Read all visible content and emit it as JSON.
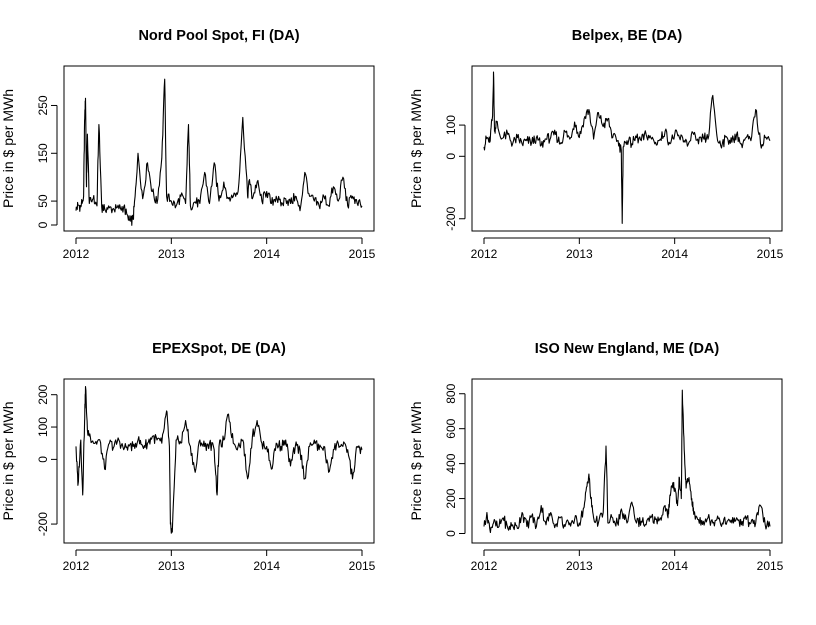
{
  "figure": {
    "background": "#ffffff",
    "line_color": "#000000"
  },
  "chart_data": [
    {
      "type": "line",
      "title": "Nord Pool Spot, FI (DA)",
      "xlabel": "",
      "ylabel": "Price in $ per MWh",
      "xlim": [
        2012,
        2015
      ],
      "ylim": [
        0,
        320
      ],
      "x_ticks": [
        2012,
        2013,
        2014,
        2015
      ],
      "y_ticks": [
        0,
        50,
        150,
        250
      ],
      "series": [
        {
          "x": [
            2012.0,
            2012.02,
            2012.05,
            2012.08,
            2012.09,
            2012.1,
            2012.11,
            2012.12,
            2012.14,
            2012.18,
            2012.22,
            2012.24,
            2012.27,
            2012.3,
            2012.35,
            2012.4,
            2012.45,
            2012.5,
            2012.55,
            2012.57,
            2012.6,
            2012.62,
            2012.65,
            2012.7,
            2012.75,
            2012.8,
            2012.85,
            2012.9,
            2012.93,
            2012.95,
            2013.0,
            2013.05,
            2013.1,
            2013.15,
            2013.18,
            2013.2,
            2013.25,
            2013.3,
            2013.35,
            2013.4,
            2013.45,
            2013.5,
            2013.55,
            2013.6,
            2013.65,
            2013.7,
            2013.75,
            2013.8,
            2013.82,
            2013.85,
            2013.9,
            2013.95,
            2014.0,
            2014.05,
            2014.1,
            2014.15,
            2014.2,
            2014.25,
            2014.3,
            2014.35,
            2014.4,
            2014.45,
            2014.5,
            2014.55,
            2014.6,
            2014.65,
            2014.7,
            2014.75,
            2014.8,
            2014.85,
            2014.9,
            2014.95,
            2015.0
          ],
          "y": [
            30,
            42,
            38,
            60,
            220,
            265,
            80,
            190,
            45,
            55,
            40,
            210,
            38,
            35,
            36,
            32,
            34,
            38,
            10,
            8,
            12,
            60,
            150,
            55,
            130,
            70,
            45,
            140,
            305,
            60,
            50,
            40,
            60,
            45,
            210,
            40,
            48,
            45,
            110,
            45,
            130,
            50,
            90,
            55,
            60,
            70,
            225,
            60,
            95,
            55,
            90,
            50,
            70,
            45,
            60,
            40,
            55,
            45,
            60,
            30,
            110,
            60,
            50,
            40,
            60,
            40,
            80,
            50,
            100,
            40,
            60,
            45,
            40
          ]
        }
      ]
    },
    {
      "type": "line",
      "title": "Belpex, BE (DA)",
      "xlabel": "",
      "ylabel": "Price in $ per MWh",
      "xlim": [
        2012,
        2015
      ],
      "ylim": [
        -220,
        270
      ],
      "x_ticks": [
        2012,
        2013,
        2014,
        2015
      ],
      "y_ticks": [
        -200,
        0,
        100
      ],
      "series": [
        {
          "x": [
            2012.0,
            2012.03,
            2012.06,
            2012.09,
            2012.1,
            2012.11,
            2012.13,
            2012.18,
            2012.25,
            2012.3,
            2012.35,
            2012.4,
            2012.45,
            2012.5,
            2012.55,
            2012.6,
            2012.65,
            2012.7,
            2012.75,
            2012.8,
            2012.85,
            2012.9,
            2012.95,
            2013.0,
            2013.05,
            2013.1,
            2013.15,
            2013.2,
            2013.25,
            2013.3,
            2013.35,
            2013.4,
            2013.44,
            2013.45,
            2013.46,
            2013.5,
            2013.55,
            2013.6,
            2013.65,
            2013.7,
            2013.75,
            2013.8,
            2013.85,
            2013.9,
            2013.95,
            2014.0,
            2014.05,
            2014.1,
            2014.15,
            2014.2,
            2014.25,
            2014.3,
            2014.35,
            2014.4,
            2014.45,
            2014.5,
            2014.55,
            2014.6,
            2014.65,
            2014.7,
            2014.75,
            2014.8,
            2014.85,
            2014.9,
            2014.95,
            2015.0
          ],
          "y": [
            30,
            60,
            45,
            130,
            270,
            80,
            110,
            55,
            70,
            40,
            60,
            40,
            50,
            45,
            60,
            35,
            55,
            60,
            70,
            40,
            80,
            55,
            110,
            60,
            120,
            150,
            55,
            140,
            95,
            120,
            60,
            50,
            20,
            -215,
            30,
            50,
            40,
            60,
            50,
            70,
            60,
            45,
            55,
            80,
            40,
            70,
            60,
            50,
            45,
            70,
            40,
            60,
            55,
            195,
            50,
            40,
            60,
            45,
            70,
            40,
            60,
            50,
            150,
            40,
            60,
            50
          ]
        }
      ]
    },
    {
      "type": "line",
      "title": "EPEXSpot, DE (DA)",
      "xlabel": "",
      "ylabel": "Price in $ per MWh",
      "xlim": [
        2012,
        2015
      ],
      "ylim": [
        -240,
        230
      ],
      "x_ticks": [
        2012,
        2013,
        2014,
        2015
      ],
      "y_ticks": [
        -200,
        0,
        100,
        200
      ],
      "series": [
        {
          "x": [
            2012.0,
            2012.02,
            2012.05,
            2012.07,
            2012.09,
            2012.1,
            2012.12,
            2012.15,
            2012.2,
            2012.25,
            2012.3,
            2012.35,
            2012.4,
            2012.45,
            2012.5,
            2012.55,
            2012.6,
            2012.65,
            2012.7,
            2012.75,
            2012.8,
            2012.85,
            2012.9,
            2012.95,
            2012.98,
            2012.99,
            2013.01,
            2013.05,
            2013.1,
            2013.15,
            2013.2,
            2013.25,
            2013.3,
            2013.35,
            2013.4,
            2013.45,
            2013.48,
            2013.5,
            2013.55,
            2013.6,
            2013.65,
            2013.7,
            2013.75,
            2013.8,
            2013.85,
            2013.9,
            2013.95,
            2014.0,
            2014.05,
            2014.1,
            2014.15,
            2014.2,
            2014.25,
            2014.3,
            2014.35,
            2014.4,
            2014.45,
            2014.5,
            2014.55,
            2014.6,
            2014.65,
            2014.7,
            2014.75,
            2014.8,
            2014.85,
            2014.9,
            2014.95,
            2015.0
          ],
          "y": [
            40,
            -80,
            60,
            -110,
            120,
            225,
            90,
            70,
            50,
            60,
            -30,
            50,
            40,
            60,
            30,
            45,
            40,
            60,
            40,
            50,
            70,
            60,
            50,
            150,
            40,
            -200,
            -225,
            60,
            50,
            120,
            40,
            -40,
            60,
            40,
            50,
            30,
            -110,
            40,
            60,
            140,
            50,
            40,
            60,
            -60,
            70,
            120,
            50,
            40,
            -30,
            50,
            40,
            60,
            -20,
            40,
            30,
            -60,
            40,
            60,
            30,
            40,
            -40,
            30,
            50,
            40,
            30,
            -60,
            40,
            30
          ]
        }
      ]
    },
    {
      "type": "line",
      "title": "ISO New England, ME (DA)",
      "xlabel": "",
      "ylabel": "Price in $ per MWh",
      "xlim": [
        2012,
        2015
      ],
      "ylim": [
        -20,
        850
      ],
      "x_ticks": [
        2012,
        2013,
        2014,
        2015
      ],
      "y_ticks": [
        0,
        200,
        400,
        600,
        800
      ],
      "series": [
        {
          "x": [
            2012.0,
            2012.03,
            2012.06,
            2012.1,
            2012.15,
            2012.2,
            2012.25,
            2012.3,
            2012.35,
            2012.4,
            2012.45,
            2012.5,
            2012.55,
            2012.6,
            2012.65,
            2012.7,
            2012.75,
            2012.8,
            2012.85,
            2012.9,
            2012.95,
            2013.0,
            2013.05,
            2013.08,
            2013.1,
            2013.12,
            2013.15,
            2013.2,
            2013.25,
            2013.28,
            2013.3,
            2013.35,
            2013.4,
            2013.45,
            2013.5,
            2013.55,
            2013.6,
            2013.65,
            2013.7,
            2013.75,
            2013.8,
            2013.85,
            2013.9,
            2013.93,
            2013.95,
            2013.98,
            2014.0,
            2014.03,
            2014.05,
            2014.07,
            2014.08,
            2014.1,
            2014.12,
            2014.15,
            2014.18,
            2014.2,
            2014.25,
            2014.3,
            2014.35,
            2014.4,
            2014.45,
            2014.5,
            2014.55,
            2014.6,
            2014.65,
            2014.7,
            2014.75,
            2014.8,
            2014.85,
            2014.9,
            2014.95,
            2015.0
          ],
          "y": [
            40,
            120,
            30,
            60,
            35,
            90,
            30,
            50,
            30,
            120,
            40,
            100,
            40,
            160,
            50,
            120,
            50,
            90,
            40,
            60,
            80,
            60,
            150,
            270,
            340,
            200,
            90,
            60,
            120,
            500,
            60,
            90,
            60,
            120,
            60,
            180,
            60,
            70,
            50,
            90,
            80,
            90,
            160,
            90,
            220,
            290,
            260,
            160,
            320,
            200,
            820,
            480,
            260,
            320,
            200,
            110,
            80,
            70,
            90,
            60,
            100,
            60,
            70,
            60,
            90,
            50,
            80,
            60,
            60,
            160,
            50,
            40
          ]
        }
      ]
    }
  ]
}
